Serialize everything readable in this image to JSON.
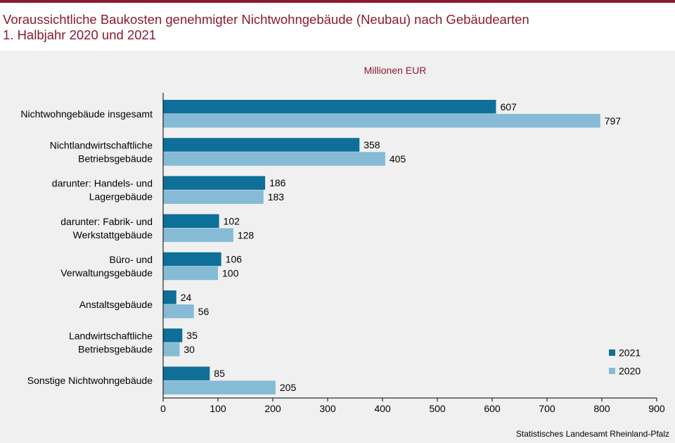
{
  "header": {
    "title_line1": "Voraussichtliche Baukosten genehmigter Nichtwohngebäude (Neubau) nach Gebäudearten",
    "title_line2": "1. Halbjahr 2020 und 2021"
  },
  "footer": {
    "source": "Statistisches Landesamt Rheinland-Pfalz"
  },
  "colors": {
    "accent": "#8b1a32",
    "series_2021": "#0e6f98",
    "series_2020": "#86bbd6",
    "background": "#f0f0f0"
  },
  "chart_data": {
    "type": "bar",
    "orientation": "horizontal",
    "unit_label": "Millionen EUR",
    "categories": [
      [
        "Nichtwohngebäude insgesamt"
      ],
      [
        "Nichtlandwirtschaftliche",
        "Betriebsgebäude"
      ],
      [
        "darunter: Handels- und",
        "Lagergebäude"
      ],
      [
        "darunter: Fabrik- und",
        "Werkstattgebäude"
      ],
      [
        "Büro- und",
        "Verwaltungsgebäude"
      ],
      [
        "Anstaltsgebäude"
      ],
      [
        "Landwirtschaftliche",
        "Betriebsgebäude"
      ],
      [
        "Sonstige Nichtwohngebäude"
      ]
    ],
    "series": [
      {
        "name": "2021",
        "color": "#0e6f98",
        "values": [
          607,
          358,
          186,
          102,
          106,
          24,
          35,
          85
        ]
      },
      {
        "name": "2020",
        "color": "#86bbd6",
        "values": [
          797,
          405,
          183,
          128,
          100,
          56,
          30,
          205
        ]
      }
    ],
    "xlim": [
      0,
      900
    ],
    "xticks": [
      0,
      100,
      200,
      300,
      400,
      500,
      600,
      700,
      800,
      900
    ],
    "legend_position": "bottom-right",
    "grid": false
  }
}
